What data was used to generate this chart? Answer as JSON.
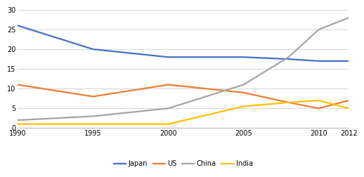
{
  "years": [
    1990,
    1995,
    2000,
    2005,
    2008,
    2010,
    2012
  ],
  "japan": [
    26,
    20,
    18,
    18,
    17.5,
    17,
    17
  ],
  "us": [
    11,
    8,
    11,
    9,
    6.5,
    5,
    7
  ],
  "china": [
    2,
    3,
    5,
    11,
    18,
    25,
    28
  ],
  "india": [
    1,
    1,
    1,
    5.5,
    6.5,
    7,
    5
  ],
  "colors": {
    "japan": "#4472C4",
    "us": "#ED7D31",
    "china": "#A5A5A5",
    "india": "#FFC000"
  },
  "ylim": [
    0,
    30
  ],
  "yticks": [
    0,
    5,
    10,
    15,
    20,
    25,
    30
  ],
  "xticks": [
    1990,
    1995,
    2000,
    2005,
    2010,
    2012
  ],
  "background_color": "#ffffff",
  "grid_color": "#d9d9d9",
  "linewidth": 1.6
}
